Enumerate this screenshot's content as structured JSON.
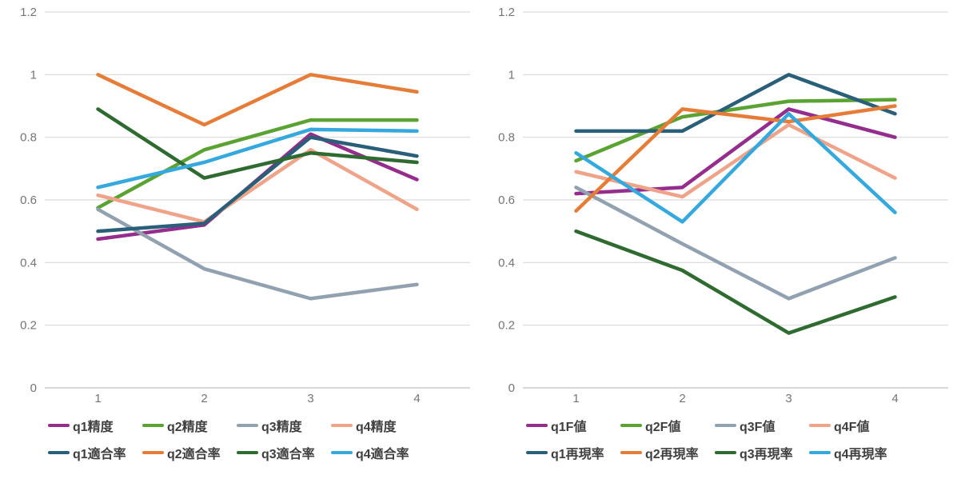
{
  "page": {
    "background": "#ffffff"
  },
  "style_colors": {
    "gridline": "#d9d9d9",
    "zero_line": "#bfbfbf",
    "tick_label": "#747474",
    "legend_text": "#3f3f3f"
  },
  "chart_data": [
    {
      "type": "line",
      "title": "",
      "x_labels": [
        "1",
        "2",
        "3",
        "4"
      ],
      "y_ticks": [
        0,
        0.2,
        0.4,
        0.6,
        0.8,
        1,
        1.2
      ],
      "y_tick_labels": [
        "0",
        "0.2",
        "0.4",
        "0.6",
        "0.8",
        "1",
        "1.2"
      ],
      "ylim": [
        0,
        1.2
      ],
      "grid": true,
      "legend_position": "bottom",
      "series": [
        {
          "name": "q1精度",
          "color": "#952d8c",
          "values": [
            0.475,
            0.52,
            0.81,
            0.665
          ]
        },
        {
          "name": "q2精度",
          "color": "#5aa333",
          "values": [
            0.575,
            0.76,
            0.855,
            0.855
          ]
        },
        {
          "name": "q3精度",
          "color": "#92a1b0",
          "values": [
            0.57,
            0.38,
            0.285,
            0.33
          ]
        },
        {
          "name": "q4精度",
          "color": "#efa389",
          "values": [
            0.615,
            0.53,
            0.76,
            0.57
          ]
        },
        {
          "name": "q1適合率",
          "color": "#295f78",
          "values": [
            0.5,
            0.525,
            0.8,
            0.74
          ]
        },
        {
          "name": "q2適合率",
          "color": "#e57d39",
          "values": [
            1.0,
            0.84,
            1.0,
            0.945
          ]
        },
        {
          "name": "q3適合率",
          "color": "#2f6b31",
          "values": [
            0.89,
            0.67,
            0.75,
            0.72
          ]
        },
        {
          "name": "q4適合率",
          "color": "#35a8dd",
          "values": [
            0.64,
            0.72,
            0.825,
            0.82
          ]
        }
      ]
    },
    {
      "type": "line",
      "title": "",
      "x_labels": [
        "1",
        "2",
        "3",
        "4"
      ],
      "y_ticks": [
        0,
        0.2,
        0.4,
        0.6,
        0.8,
        1,
        1.2
      ],
      "y_tick_labels": [
        "0",
        "0.2",
        "0.4",
        "0.6",
        "0.8",
        "1",
        "1.2"
      ],
      "ylim": [
        0,
        1.2
      ],
      "grid": true,
      "legend_position": "bottom",
      "series": [
        {
          "name": "q1F値",
          "color": "#952d8c",
          "values": [
            0.62,
            0.64,
            0.89,
            0.8
          ]
        },
        {
          "name": "q2F値",
          "color": "#5aa333",
          "values": [
            0.725,
            0.865,
            0.915,
            0.92
          ]
        },
        {
          "name": "q3F値",
          "color": "#92a1b0",
          "values": [
            0.64,
            0.46,
            0.285,
            0.415
          ]
        },
        {
          "name": "q4F値",
          "color": "#efa389",
          "values": [
            0.69,
            0.61,
            0.84,
            0.67
          ]
        },
        {
          "name": "q1再現率",
          "color": "#295f78",
          "values": [
            0.82,
            0.82,
            1.0,
            0.875
          ]
        },
        {
          "name": "q2再現率",
          "color": "#e57d39",
          "values": [
            0.565,
            0.89,
            0.85,
            0.9
          ]
        },
        {
          "name": "q3再現率",
          "color": "#2f6b31",
          "values": [
            0.5,
            0.375,
            0.175,
            0.29
          ]
        },
        {
          "name": "q4再現率",
          "color": "#35a8dd",
          "values": [
            0.75,
            0.53,
            0.875,
            0.56
          ]
        }
      ]
    }
  ]
}
